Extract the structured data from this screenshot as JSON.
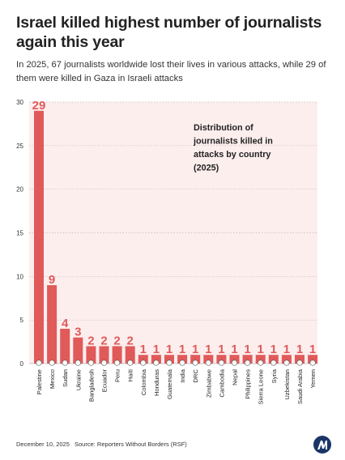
{
  "header": {
    "title": "Israel killed highest number of journalists again this year",
    "subtitle": "In 2025, 67 journalists worldwide lost their lives in various attacks, while 29 of them were killed in Gaza in Israeli attacks"
  },
  "footer": {
    "date": "December 10, 2025",
    "source": "Source: Reporters Without Borders (RSF)"
  },
  "colors": {
    "bar": "#e05a5a",
    "label": "#e05a5a",
    "plot_bg": "#fdeeee",
    "grid": "#bbbbbb",
    "logo": "#1a3566"
  },
  "chart_data": {
    "type": "bar",
    "title": "Distribution of journalists killed in attacks by country (2025)",
    "xlabel": "",
    "ylabel": "",
    "ylim": [
      0,
      30
    ],
    "yticks": [
      0,
      5,
      10,
      15,
      20,
      25,
      30
    ],
    "grid": true,
    "categories": [
      "Palestine",
      "Mexico",
      "Sudan",
      "Ukraine",
      "Bangladesh",
      "Ecuador",
      "Peru",
      "Haiti",
      "Colombia",
      "Honduras",
      "Guatemala",
      "India",
      "DRC",
      "Zimbabwe",
      "Cambodia",
      "Nepal",
      "Philippines",
      "Sierra Leone",
      "Syria",
      "Uzbekistan",
      "Saudi Arabia",
      "Yemen"
    ],
    "values": [
      29,
      9,
      4,
      3,
      2,
      2,
      2,
      2,
      1,
      1,
      1,
      1,
      1,
      1,
      1,
      1,
      1,
      1,
      1,
      1,
      1,
      1
    ],
    "data_labels": [
      "29",
      "9",
      "4",
      "3",
      "2",
      "2",
      "2",
      "2",
      "1",
      "1",
      "1",
      "1",
      "1",
      "1",
      "1",
      "1",
      "1",
      "1",
      "1",
      "1",
      "1",
      "1"
    ],
    "flag_icons": [
      "palestine-flag-icon",
      "mexico-flag-icon",
      "sudan-flag-icon",
      "ukraine-flag-icon",
      "bangladesh-flag-icon",
      "ecuador-flag-icon",
      "peru-flag-icon",
      "haiti-flag-icon",
      "colombia-flag-icon",
      "honduras-flag-icon",
      "guatemala-flag-icon",
      "india-flag-icon",
      "drc-flag-icon",
      "zimbabwe-flag-icon",
      "cambodia-flag-icon",
      "nepal-flag-icon",
      "philippines-flag-icon",
      "sierra-leone-flag-icon",
      "syria-flag-icon",
      "uzbekistan-flag-icon",
      "saudi-arabia-flag-icon",
      "yemen-flag-icon"
    ]
  }
}
